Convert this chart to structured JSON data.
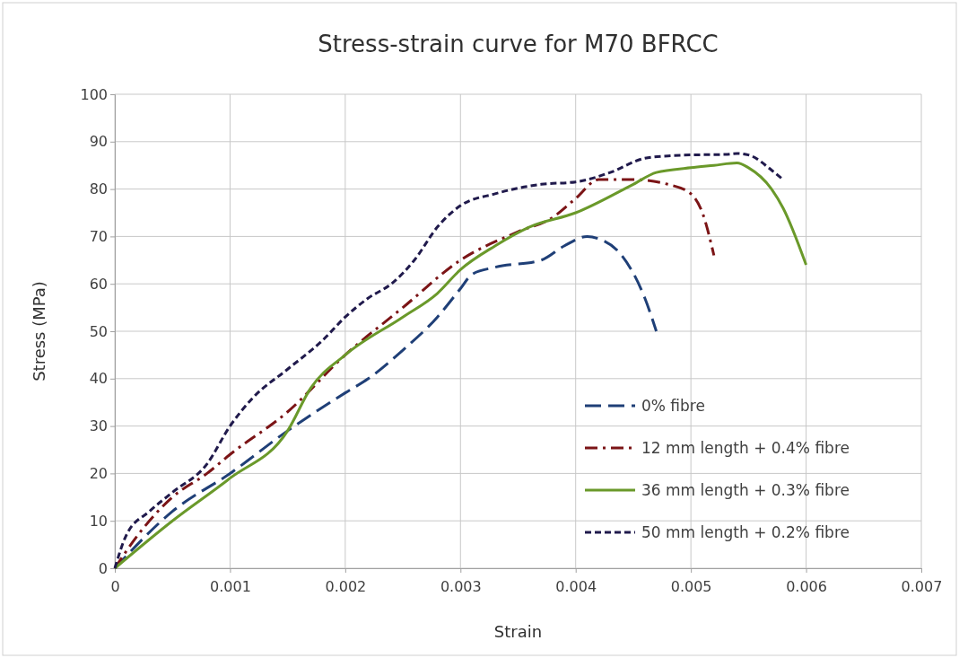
{
  "chart_data": {
    "type": "line",
    "title": "Stress-strain curve for M70 BFRCC",
    "xlabel": "Strain",
    "ylabel": "Stress (MPa)",
    "xlim": [
      0,
      0.007
    ],
    "xticks": [
      0,
      0.001,
      0.002,
      0.003,
      0.004,
      0.005,
      0.006,
      0.007
    ],
    "ylim": [
      0,
      100
    ],
    "yticks": [
      0,
      10,
      20,
      30,
      40,
      50,
      60,
      70,
      80,
      90,
      100
    ],
    "grid": true,
    "legend": "bottom right",
    "marker": "none",
    "series": [
      {
        "name": "0% fibre",
        "color": "#1f3f77",
        "line_style": "dashed",
        "x": [
          0,
          0.0005,
          0.001,
          0.0015,
          0.002,
          0.0022,
          0.0025,
          0.0028,
          0.003,
          0.0031,
          0.0033,
          0.0037,
          0.0039,
          0.0041,
          0.0042,
          0.0044,
          0.0046,
          0.0047
        ],
        "values": [
          0,
          12,
          20,
          29,
          37,
          40,
          46,
          53,
          59,
          62,
          63.5,
          65,
          68,
          70,
          69.5,
          66,
          57,
          50
        ]
      },
      {
        "name": "12 mm length + 0.4% fibre",
        "color": "#7b1416",
        "line_style": "dashdot",
        "x": [
          0,
          0.0002,
          0.0005,
          0.0008,
          0.001,
          0.0015,
          0.002,
          0.0025,
          0.003,
          0.0035,
          0.0038,
          0.004,
          0.0042,
          0.0045,
          0.0048,
          0.005,
          0.0051,
          0.0052
        ],
        "values": [
          0,
          7,
          15,
          20,
          24,
          33,
          45,
          55,
          65,
          71,
          74,
          78,
          82,
          82,
          81,
          79,
          75,
          66
        ]
      },
      {
        "name": "36 mm length + 0.3% fibre",
        "color": "#6a992a",
        "line_style": "solid",
        "x": [
          0,
          0.0005,
          0.001,
          0.0015,
          0.0017,
          0.002,
          0.0025,
          0.0028,
          0.003,
          0.0033,
          0.0036,
          0.004,
          0.0045,
          0.0047,
          0.005,
          0.0052,
          0.0054,
          0.0055,
          0.0057,
          0.0058,
          0.006
        ],
        "values": [
          0,
          10,
          19,
          29,
          38,
          45,
          53,
          58,
          63,
          68,
          72,
          75,
          81,
          83.5,
          84.5,
          85,
          85.5,
          84.5,
          80,
          76,
          64
        ]
      },
      {
        "name": "50 mm length + 0.2% fibre",
        "color": "#201a4c",
        "line_style": "dotted",
        "x": [
          0,
          0.0001,
          0.0003,
          0.0005,
          0.0008,
          0.001,
          0.0012,
          0.0015,
          0.0018,
          0.002,
          0.0022,
          0.0024,
          0.0026,
          0.0028,
          0.003,
          0.0033,
          0.0037,
          0.004,
          0.0043,
          0.0046,
          0.0048,
          0.005,
          0.0053,
          0.0054,
          0.0055,
          0.0057,
          0.0058
        ],
        "values": [
          0,
          7,
          12,
          16,
          22,
          30,
          36,
          42,
          48,
          53,
          57,
          60,
          65,
          72,
          76.5,
          79,
          81,
          81.5,
          83.5,
          86.5,
          87,
          87.2,
          87.3,
          87.5,
          87.2,
          84,
          82
        ]
      }
    ]
  }
}
